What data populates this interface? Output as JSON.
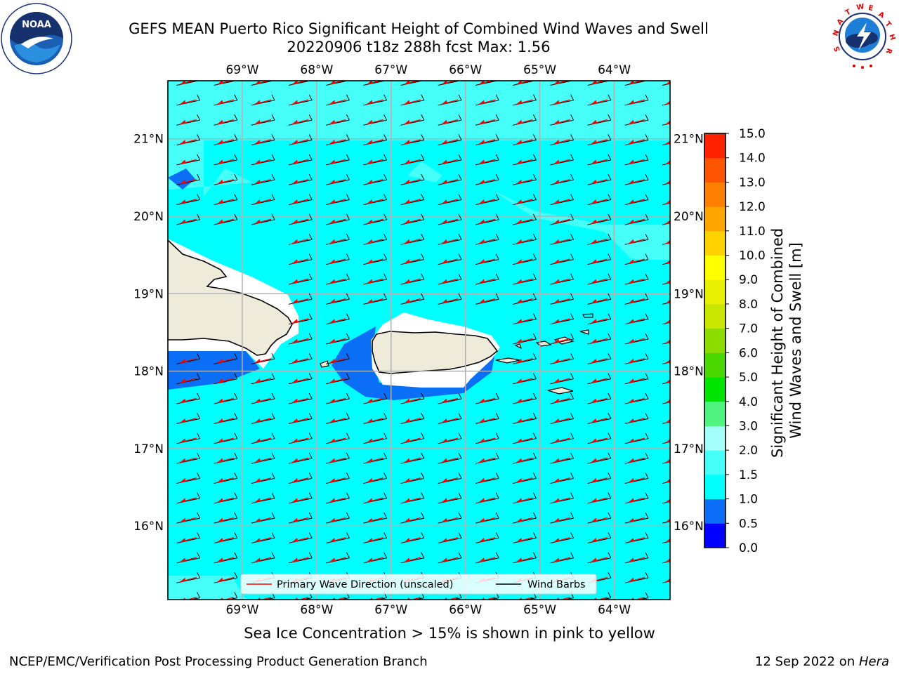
{
  "header": {
    "title_line1": "GEFS MEAN Puerto Rico Significant Height of Combined Wind Waves and Swell",
    "title_line2": "20220906 t18z 288h fcst   Max: 1.56"
  },
  "logos": {
    "left": "noaa-logo",
    "right": "national-weather-service-logo"
  },
  "chart_data": {
    "type": "heatmap",
    "region": "Puerto Rico",
    "variable": "Significant Height of Combined Wind Waves and Swell",
    "max_value": 1.56,
    "lon_ticks": [
      "69°W",
      "68°W",
      "67°W",
      "66°W",
      "65°W",
      "64°W"
    ],
    "lon_values": [
      -69,
      -68,
      -67,
      -66,
      -65,
      -64
    ],
    "lat_ticks": [
      "21°N",
      "20°N",
      "19°N",
      "18°N",
      "17°N",
      "16°N"
    ],
    "lat_values": [
      21,
      20,
      19,
      18,
      17,
      16
    ],
    "lon_range": [
      -70.0,
      -63.25
    ],
    "lat_range": [
      15.05,
      21.75
    ],
    "colorbar": {
      "label": "Significant Height of Combined Wind Waves and Swell [m]",
      "levels": [
        0.0,
        0.5,
        1.0,
        1.5,
        2.0,
        3.0,
        4.0,
        5.0,
        6.0,
        7.0,
        8.0,
        9.0,
        10.0,
        11.0,
        12.0,
        13.0,
        14.0,
        15.0
      ],
      "tick_labels": [
        "0.0",
        "0.5",
        "1.0",
        "1.5",
        "2.0",
        "3.0",
        "4.0",
        "5.0",
        "6.0",
        "7.0",
        "8.0",
        "9.0",
        "10.0",
        "11.0",
        "12.0",
        "13.0",
        "14.0",
        "15.0"
      ],
      "colors": [
        "#0000ff",
        "#0a6ef6",
        "#00ffff",
        "#46fff8",
        "#a4fffb",
        "#50f37f",
        "#00e400",
        "#4bd800",
        "#8cdc00",
        "#c8e600",
        "#e6f000",
        "#ffff00",
        "#ffd200",
        "#ffa500",
        "#ff8000",
        "#ff5400",
        "#ff2200"
      ]
    },
    "field_colors": {
      "range_0_5_1_0": "#0a6ef6",
      "range_1_0_1_5": "#00ffff",
      "range_1_5_2_0": "#46fff8",
      "land": "#efebda",
      "no_data": "#ffffff"
    },
    "vectors": {
      "primary_wave_direction": "westward (from east)",
      "wind_barbs": "easterly trade winds"
    },
    "legend": {
      "items": [
        "Primary Wave Direction (unscaled)",
        "Wind Barbs"
      ],
      "item_colors": [
        "#ff0000",
        "#000000"
      ],
      "location": "lower-center"
    },
    "grid": true
  },
  "notes": {
    "sea_ice": "Sea Ice Concentration > 15% is shown in pink to yellow"
  },
  "footer": {
    "left": "NCEP/EMC/Verification Post Processing Product Generation Branch",
    "right_prefix": "12 Sep 2022 on ",
    "right_host": "Hera"
  }
}
